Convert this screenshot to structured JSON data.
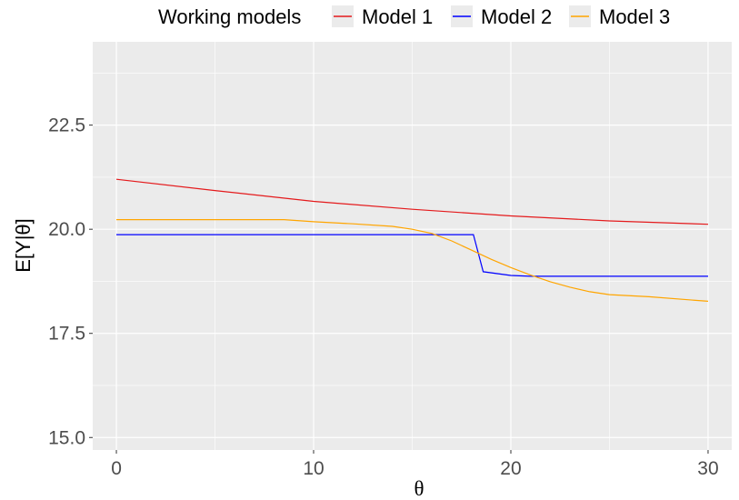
{
  "legend": {
    "title": "Working models",
    "items": [
      {
        "label": "Model 1",
        "color": "#e41a1c"
      },
      {
        "label": "Model 2",
        "color": "#0000ff"
      },
      {
        "label": "Model 3",
        "color": "#ffa500"
      }
    ]
  },
  "chart_data": {
    "type": "line",
    "xlabel": "θ",
    "ylabel": "E[Y|θ]",
    "xlim": [
      -1.2,
      31.2
    ],
    "ylim": [
      14.7,
      24.5
    ],
    "xticks": [
      0,
      10,
      20,
      30
    ],
    "yticks": [
      15.0,
      17.5,
      20.0,
      22.5
    ],
    "xtick_labels": [
      "0",
      "10",
      "20",
      "30"
    ],
    "ytick_labels": [
      "15.0",
      "17.5",
      "20.0",
      "22.5"
    ],
    "grid": true,
    "legend_position": "top",
    "background": "#ebebeb",
    "series": [
      {
        "name": "Model 1",
        "color": "#e41a1c",
        "x": [
          0,
          5,
          10,
          15,
          20,
          25,
          30
        ],
        "y": [
          21.2,
          20.93,
          20.67,
          20.48,
          20.32,
          20.2,
          20.12
        ]
      },
      {
        "name": "Model 2",
        "color": "#0000ff",
        "x": [
          0,
          18.1,
          18.6,
          20,
          21,
          25,
          30
        ],
        "y": [
          19.87,
          19.87,
          18.98,
          18.89,
          18.87,
          18.87,
          18.87
        ]
      },
      {
        "name": "Model 3",
        "color": "#ffa500",
        "x": [
          0,
          5,
          8.5,
          10,
          12,
          14,
          15,
          16,
          17,
          18,
          19,
          20,
          21,
          22,
          23,
          24,
          25,
          27,
          30
        ],
        "y": [
          20.23,
          20.23,
          20.23,
          20.18,
          20.13,
          20.07,
          20.0,
          19.9,
          19.72,
          19.5,
          19.28,
          19.08,
          18.9,
          18.74,
          18.61,
          18.5,
          18.43,
          18.38,
          18.27
        ]
      }
    ]
  }
}
